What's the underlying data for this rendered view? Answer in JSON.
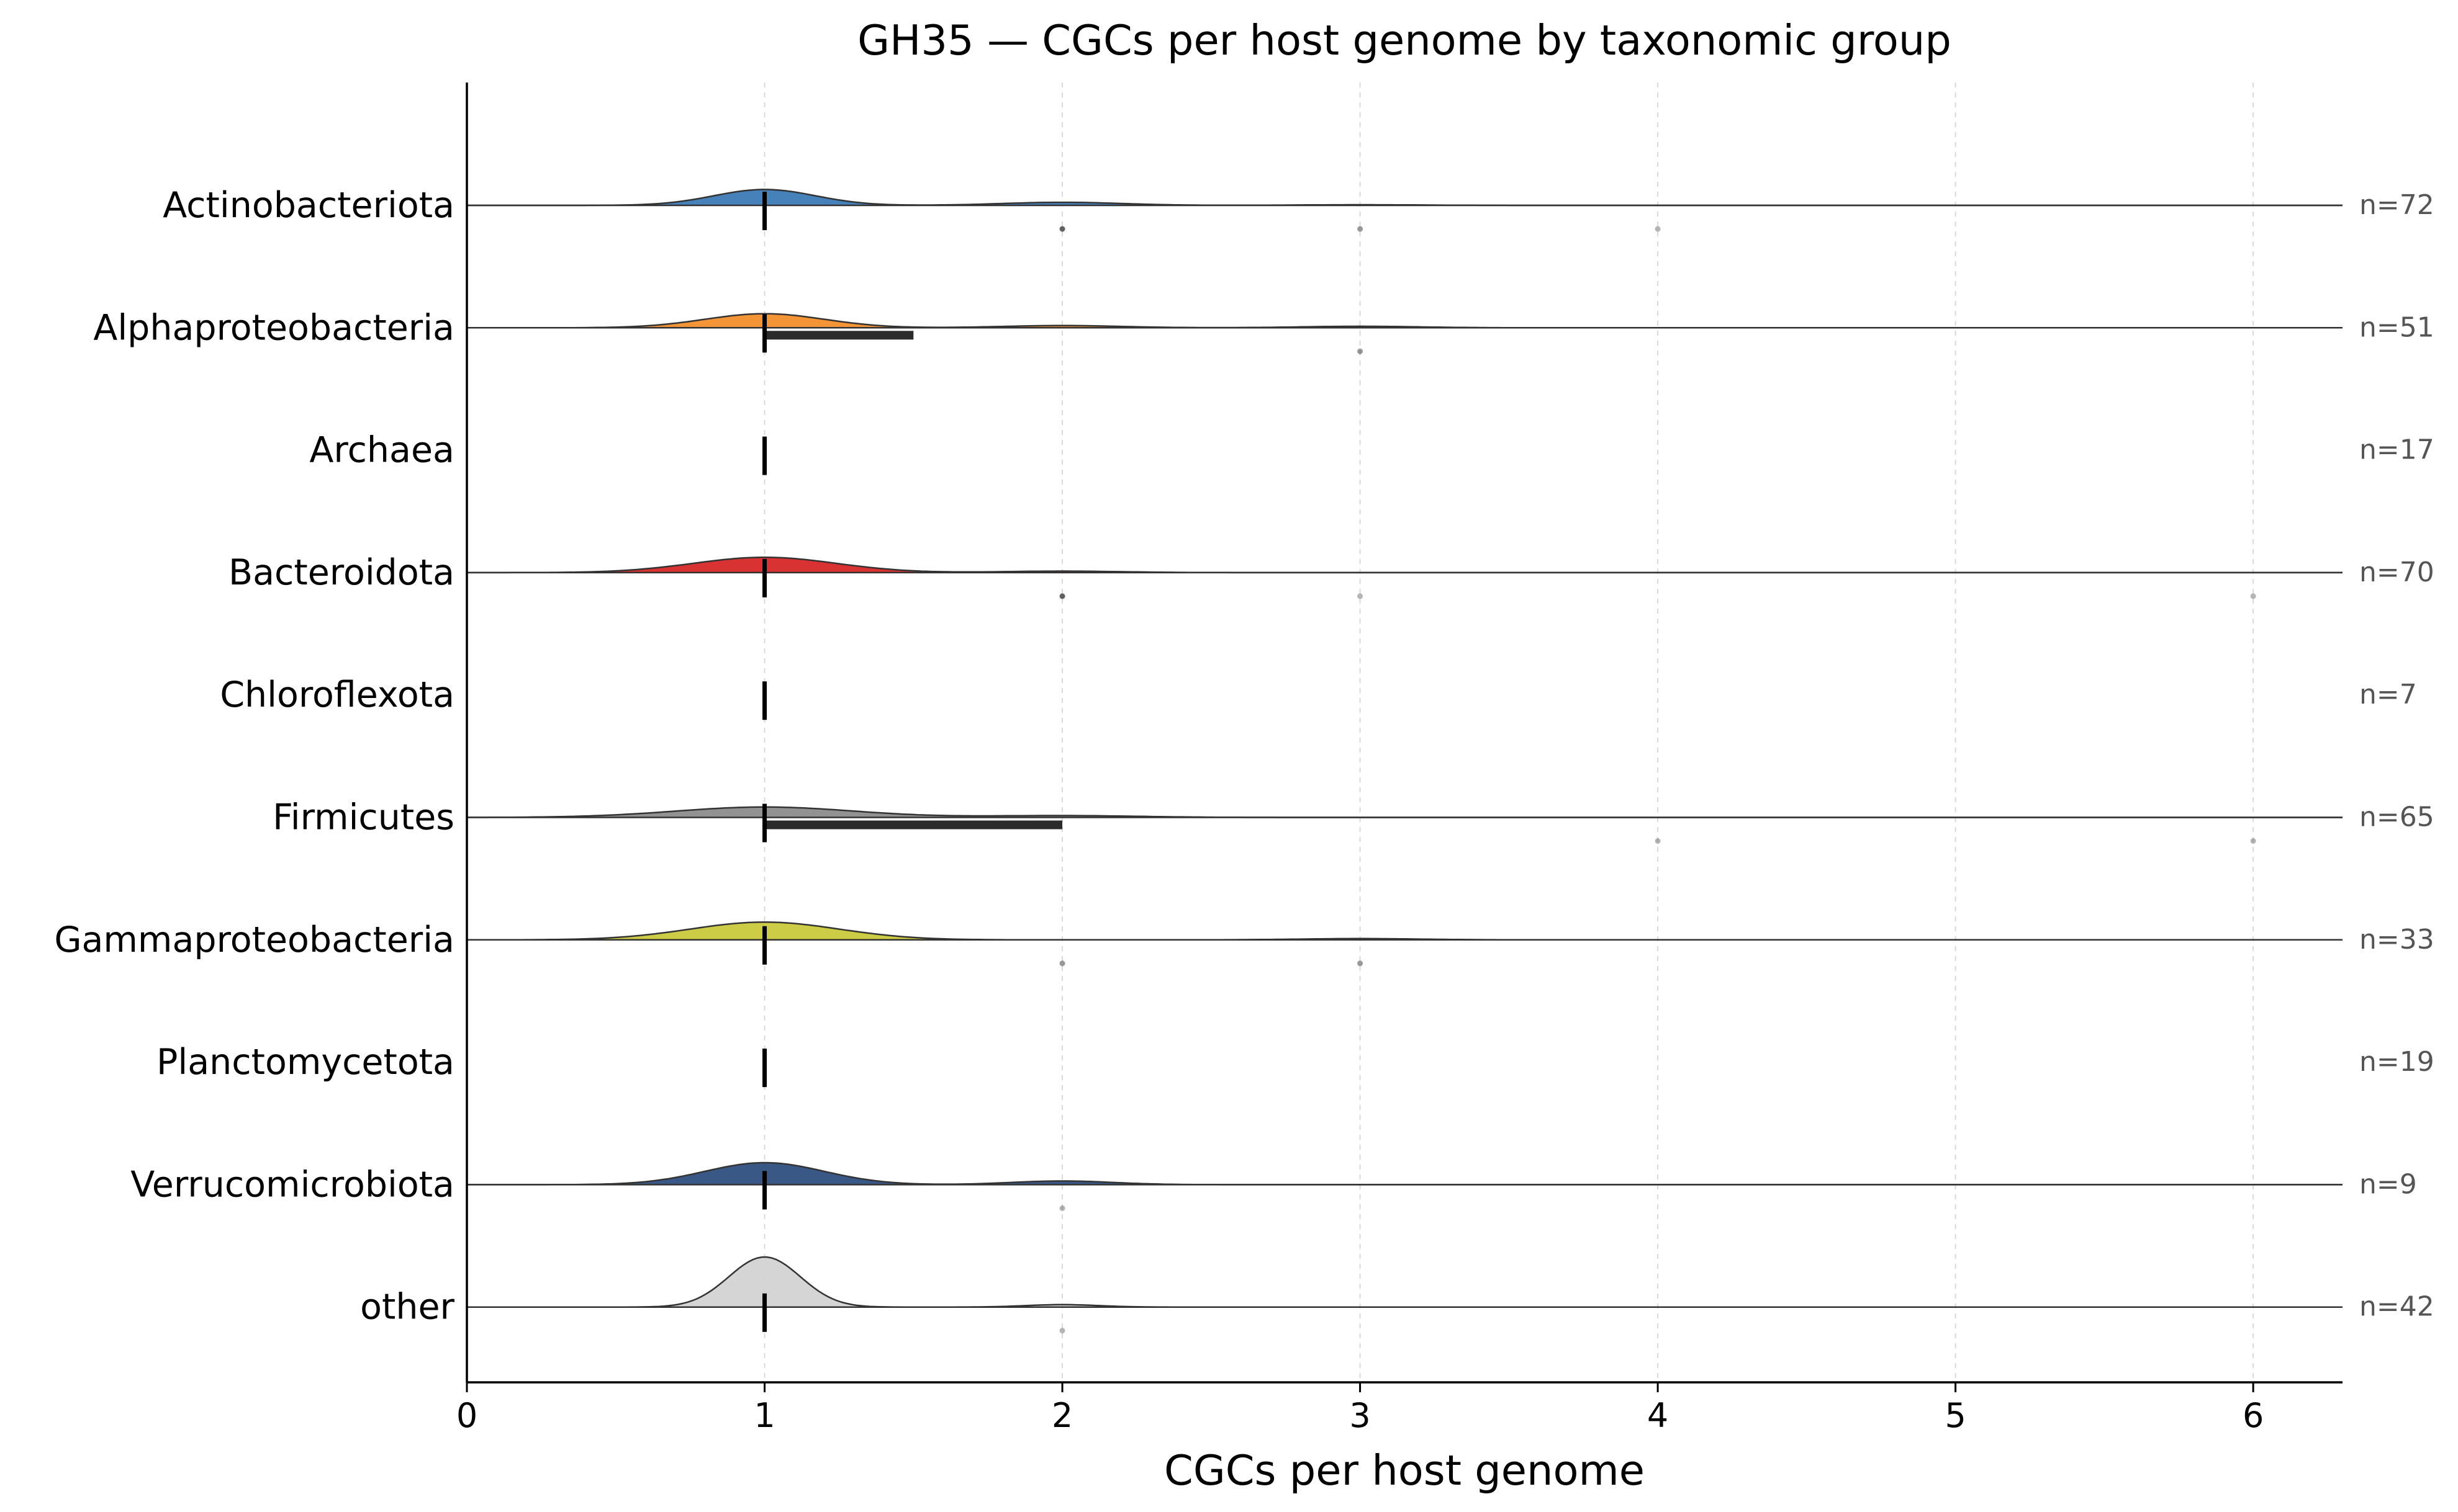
{
  "chart_data": {
    "type": "ridgeline",
    "title": "GH35 — CGCs per host genome by taxonomic group",
    "xlabel": "CGCs per host genome",
    "ylabel": "",
    "xlim": [
      0,
      6.3
    ],
    "xticks": [
      0,
      1,
      2,
      3,
      4,
      5,
      6
    ],
    "xtick_labels": [
      "0",
      "1",
      "2",
      "3",
      "4",
      "5",
      "6"
    ],
    "grid": "x-dashed",
    "groups": [
      {
        "label": "Actinobacteriota",
        "n_label": "n=72",
        "n": 72,
        "color": "#3d7ab5",
        "median": 1,
        "q1": 1,
        "q3": 1,
        "density": [
          {
            "center": 1,
            "width": 0.17,
            "amp": 0.13
          },
          {
            "center": 2,
            "width": 0.2,
            "amp": 0.025
          },
          {
            "center": 3,
            "width": 0.2,
            "amp": 0.005
          }
        ],
        "points": [
          {
            "x": 2,
            "count": 4
          },
          {
            "x": 3,
            "count": 2
          },
          {
            "x": 4,
            "count": 1
          }
        ]
      },
      {
        "label": "Alphaproteobacteria",
        "n_label": "n=51",
        "n": 51,
        "color": "#f28e2b",
        "median": 1,
        "q1": 1,
        "q3": 1.5,
        "density": [
          {
            "center": 1,
            "width": 0.2,
            "amp": 0.115
          },
          {
            "center": 2,
            "width": 0.2,
            "amp": 0.018
          },
          {
            "center": 3,
            "width": 0.2,
            "amp": 0.012
          }
        ],
        "points": [
          {
            "x": 3,
            "count": 2
          }
        ]
      },
      {
        "label": "Archaea",
        "n_label": "n=17",
        "n": 17,
        "color": "#59a14f",
        "median": 1,
        "q1": 1,
        "q3": 1,
        "density": [],
        "points": []
      },
      {
        "label": "Bacteroidota",
        "n_label": "n=70",
        "n": 70,
        "color": "#d62728",
        "median": 1,
        "q1": 1,
        "q3": 1,
        "density": [
          {
            "center": 1,
            "width": 0.24,
            "amp": 0.125
          },
          {
            "center": 2,
            "width": 0.2,
            "amp": 0.012
          }
        ],
        "points": [
          {
            "x": 2,
            "count": 4
          },
          {
            "x": 3,
            "count": 1
          },
          {
            "x": 6,
            "count": 1
          }
        ]
      },
      {
        "label": "Chloroflexota",
        "n_label": "n=7",
        "n": 7,
        "color": "#9467bd",
        "median": 1,
        "q1": 1,
        "q3": 1,
        "density": [],
        "points": []
      },
      {
        "label": "Firmicutes",
        "n_label": "n=65",
        "n": 65,
        "color": "#8c8c8c",
        "median": 1,
        "q1": 1,
        "q3": 2,
        "density": [
          {
            "center": 1,
            "width": 0.3,
            "amp": 0.085
          },
          {
            "center": 2,
            "width": 0.25,
            "amp": 0.015
          }
        ],
        "points": [
          {
            "x": 4,
            "count": 1
          },
          {
            "x": 6,
            "count": 1
          }
        ]
      },
      {
        "label": "Gammaproteobacteria",
        "n_label": "n=33",
        "n": 33,
        "color": "#c9c93c",
        "median": 1,
        "q1": 1,
        "q3": 1,
        "density": [
          {
            "center": 1,
            "width": 0.25,
            "amp": 0.145
          },
          {
            "center": 3,
            "width": 0.2,
            "amp": 0.01
          }
        ],
        "points": [
          {
            "x": 2,
            "count": 2
          },
          {
            "x": 3,
            "count": 2
          }
        ]
      },
      {
        "label": "Planctomycetota",
        "n_label": "n=19",
        "n": 19,
        "color": "#17becf",
        "median": 1,
        "q1": 1,
        "q3": 1,
        "density": [],
        "points": []
      },
      {
        "label": "Verrucomicrobiota",
        "n_label": "n=9",
        "n": 9,
        "color": "#2f4f80",
        "median": 1,
        "q1": 1,
        "q3": 1,
        "density": [
          {
            "center": 1,
            "width": 0.2,
            "amp": 0.18
          },
          {
            "center": 2,
            "width": 0.17,
            "amp": 0.03
          }
        ],
        "points": [
          {
            "x": 2,
            "count": 1
          }
        ]
      },
      {
        "label": "other",
        "n_label": "n=42",
        "n": 42,
        "color": "#d3d3d3",
        "median": 1,
        "q1": 1,
        "q3": 1,
        "density": [
          {
            "center": 1,
            "width": 0.12,
            "amp": 0.41
          },
          {
            "center": 2,
            "width": 0.12,
            "amp": 0.02
          }
        ],
        "points": [
          {
            "x": 2,
            "count": 1
          }
        ]
      }
    ]
  }
}
